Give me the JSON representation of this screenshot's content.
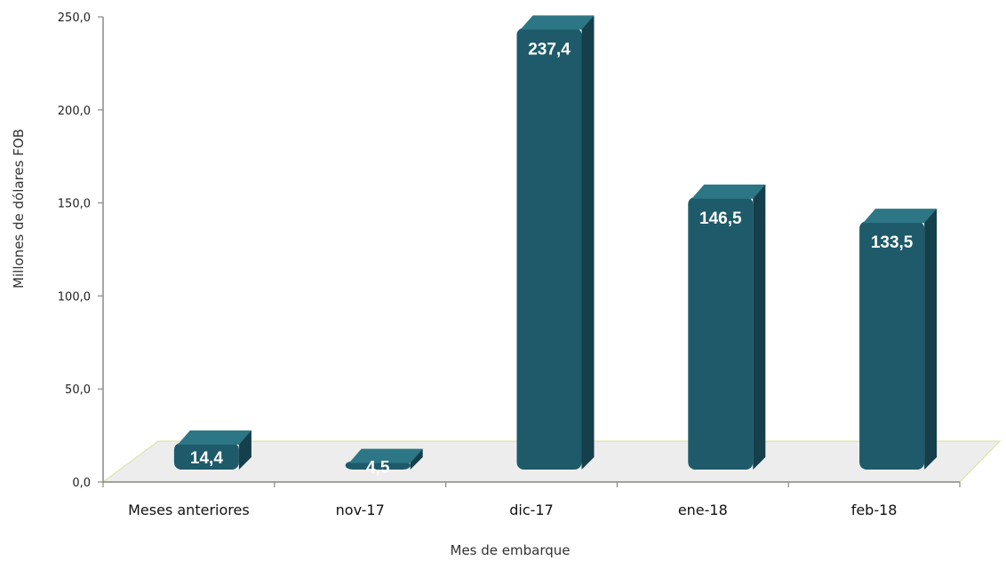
{
  "chart_data": {
    "type": "bar",
    "categories": [
      "Meses anteriores",
      "nov-17",
      "dic-17",
      "ene-18",
      "feb-18"
    ],
    "values": [
      14.4,
      4.5,
      237.4,
      146.5,
      133.5
    ],
    "value_labels": [
      "14,4",
      "4,5",
      "237,4",
      "146,5",
      "133,5"
    ],
    "ylim": [
      0,
      250
    ],
    "yticks": [
      0,
      50,
      100,
      150,
      200,
      250
    ],
    "ytick_labels": [
      "0,0",
      "50,0",
      "100,0",
      "150,0",
      "200,0",
      "250,0"
    ],
    "xlabel": "Mes de embarque",
    "ylabel": "Millones de dólares FOB",
    "grid": false,
    "legend": "none",
    "style": "3d",
    "colors": {
      "bar_front": "#1e5a69",
      "bar_side": "#153f4a",
      "bar_top": "#2d7686",
      "floor": "#ededed",
      "floor_edge": "#d9e6a8",
      "axis": "#888888"
    }
  }
}
